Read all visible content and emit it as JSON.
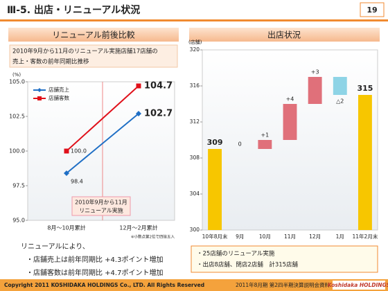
{
  "header": {
    "title": "Ⅲ-5. 出店・リニューアル状況",
    "page": "19"
  },
  "chart_data": [
    {
      "type": "line",
      "title": "リニューアル前後比較",
      "subtitle": [
        "2010年9月から11月のリニューアル実施店舗17店舗の",
        "売上・客数の前年同期比推移"
      ],
      "y_label": "(%)",
      "categories": [
        "8月～10月累計",
        "12月～2月累計"
      ],
      "series": [
        {
          "name": "店舗売上",
          "color": "#1f6fc5",
          "values": [
            98.4,
            102.7
          ],
          "value_labels": [
            "98.4",
            "102.7"
          ]
        },
        {
          "name": "店舗客数",
          "color": "#e0101a",
          "values": [
            100.0,
            104.7
          ],
          "value_labels": [
            "100.0",
            "104.7"
          ]
        }
      ],
      "ylim": [
        95,
        105
      ],
      "yticks": [
        {
          "value": 95,
          "label": "95.0"
        },
        97.5,
        {
          "value": 100,
          "label": "100.0"
        },
        102.5,
        {
          "value": 105,
          "label": "105.0"
        }
      ],
      "annotation": [
        "2010年9月から11月",
        "リニューアル実施"
      ],
      "note": "※小数点第2位で四捨五入",
      "grid": false,
      "legend": "top-left"
    },
    {
      "type": "waterfall",
      "title": "出店状況",
      "y_label": "(店舗)",
      "categories": [
        "10年8月末",
        "9月",
        "10月",
        "11月",
        "12月",
        "1月",
        "11年2月末"
      ],
      "values": [
        309,
        0,
        1,
        4,
        3,
        -2,
        315
      ],
      "value_labels": [
        "309",
        "0",
        "+1",
        "+4",
        "+3",
        "△2",
        "315"
      ],
      "measure": [
        "total",
        "relative",
        "relative",
        "relative",
        "relative",
        "relative",
        "total"
      ],
      "colors": {
        "total": "#f7c600",
        "increase": "#e0707a",
        "decrease": "#8ed4e6"
      },
      "ylim": [
        300,
        320
      ],
      "yticks": [
        300,
        304,
        308,
        312,
        316,
        320
      ],
      "notes": [
        "・25店舗のリニューアル実施",
        "・出店8店舗、閉店2店舗　計315店舗"
      ]
    }
  ],
  "summary": {
    "lead": "リニューアルにより、",
    "lines": [
      "・店舗売上は前年同期比 +4.3ポイント増加",
      "・店舗客数は前年同期比 +4.7ポイント増加"
    ]
  },
  "footer": {
    "copyright": "Copyright 2011 KOSHIDAKA HOLDINGS Co., LTD. All Rights Reserved",
    "doc": "2011年8月期 第2四半期決算説明会資料",
    "logo": "Koshidaka HOLDINGS"
  }
}
